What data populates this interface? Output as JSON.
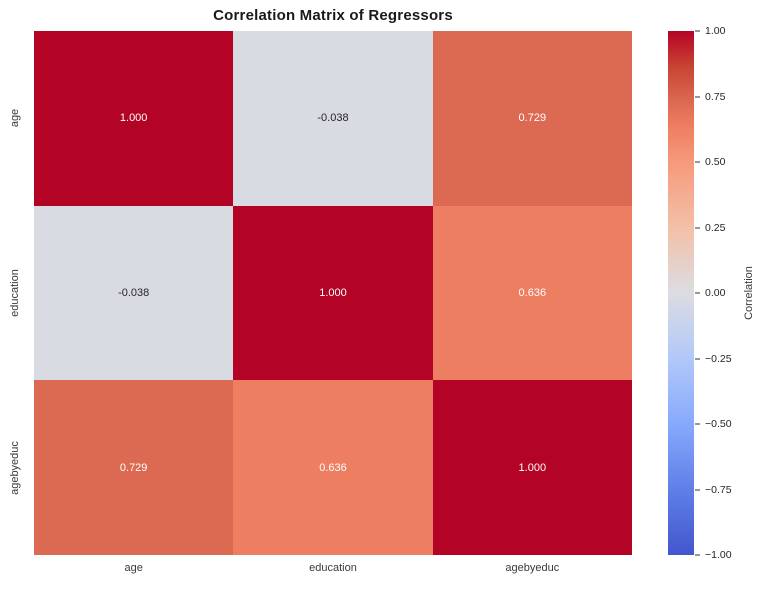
{
  "title": "Correlation Matrix of Regressors",
  "colors": {
    "background": "#ffffff",
    "title_text": "#1a1a1a",
    "axis_text": "#3a3a3a",
    "tick_text": "#262626",
    "corr_high": "#b40426",
    "corr_near_zero": "#d8dbe2",
    "corr_0_729": "#dc6a52",
    "corr_0_636": "#ee7e61",
    "colorbar_low": "#4356ce"
  },
  "chart_data": {
    "type": "heatmap",
    "title": "Correlation Matrix of Regressors",
    "x_categories": [
      "age",
      "education",
      "agebyeduc"
    ],
    "y_categories": [
      "age",
      "education",
      "agebyeduc"
    ],
    "matrix": [
      [
        1.0,
        -0.038,
        0.729
      ],
      [
        -0.038,
        1.0,
        0.636
      ],
      [
        0.729,
        0.636,
        1.0
      ]
    ],
    "cell_labels": [
      [
        "1.000",
        "-0.038",
        "0.729"
      ],
      [
        "-0.038",
        "1.000",
        "0.636"
      ],
      [
        "0.729",
        "0.636",
        "1.000"
      ]
    ],
    "cell_colors": [
      [
        "#b40426",
        "#d8dbe2",
        "#dc6a52"
      ],
      [
        "#d8dbe2",
        "#b40426",
        "#ee7e61"
      ],
      [
        "#dc6a52",
        "#ee7e61",
        "#b40426"
      ]
    ],
    "cell_text_colors": [
      [
        "#ffffff",
        "#262626",
        "#ffffff"
      ],
      [
        "#262626",
        "#ffffff",
        "#ffffff"
      ],
      [
        "#ffffff",
        "#ffffff",
        "#ffffff"
      ]
    ],
    "colormap": "coolwarm",
    "value_range": [
      -1,
      1
    ],
    "grid": false,
    "colorbar": {
      "label": "Correlation",
      "tick_values": [
        1.0,
        0.75,
        0.5,
        0.25,
        0.0,
        -0.25,
        -0.5,
        -0.75,
        -1.0
      ],
      "tick_labels": [
        "1.00",
        "0.75",
        "0.50",
        "0.25",
        "0.00",
        "−0.25",
        "−0.50",
        "−0.75",
        "−1.00"
      ],
      "gradient_stops": [
        {
          "pos": 0,
          "color": "#b40426"
        },
        {
          "pos": 7,
          "color": "#c94534"
        },
        {
          "pos": 13.6,
          "color": "#dc6a52"
        },
        {
          "pos": 18.2,
          "color": "#ee7e61"
        },
        {
          "pos": 25,
          "color": "#f6997c"
        },
        {
          "pos": 37.5,
          "color": "#f3c0a7"
        },
        {
          "pos": 50,
          "color": "#dcdce2"
        },
        {
          "pos": 62.5,
          "color": "#b2c8f9"
        },
        {
          "pos": 75,
          "color": "#87a9fc"
        },
        {
          "pos": 87.5,
          "color": "#5f7fe8"
        },
        {
          "pos": 100,
          "color": "#4356ce"
        }
      ]
    }
  }
}
